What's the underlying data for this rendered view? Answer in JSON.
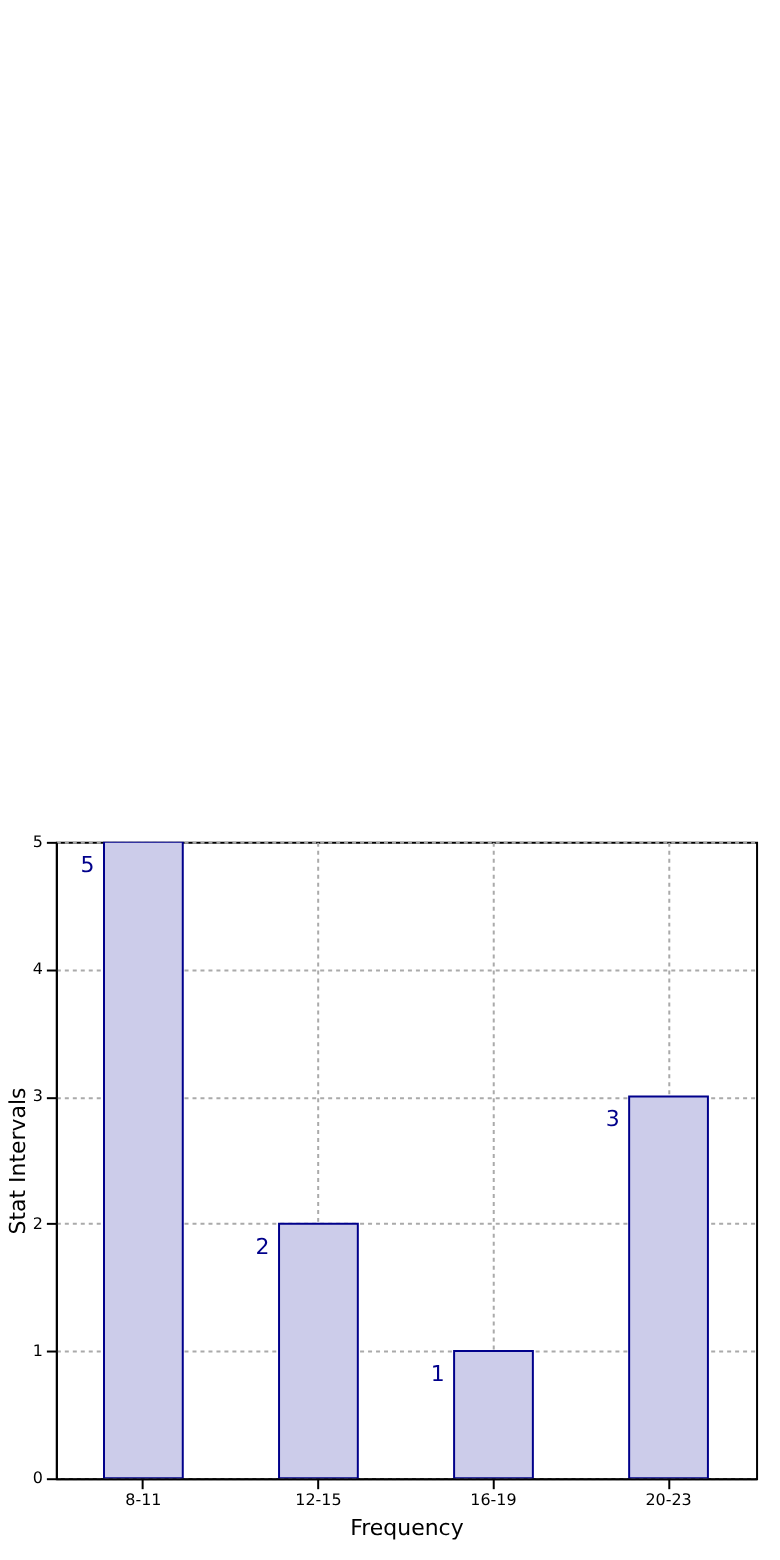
{
  "chart_data": {
    "type": "bar",
    "xlabel": "Frequency",
    "ylabel": "Stat Intervals",
    "categories": [
      "8-11",
      "12-15",
      "16-19",
      "20-23"
    ],
    "values": [
      5,
      2,
      1,
      3
    ],
    "value_labels": [
      "5",
      "2",
      "1",
      "3"
    ],
    "color": "#ccccea",
    "ylim": [
      0,
      5
    ],
    "yticks": [
      0,
      1,
      2,
      3,
      4,
      5
    ],
    "grid": true
  }
}
